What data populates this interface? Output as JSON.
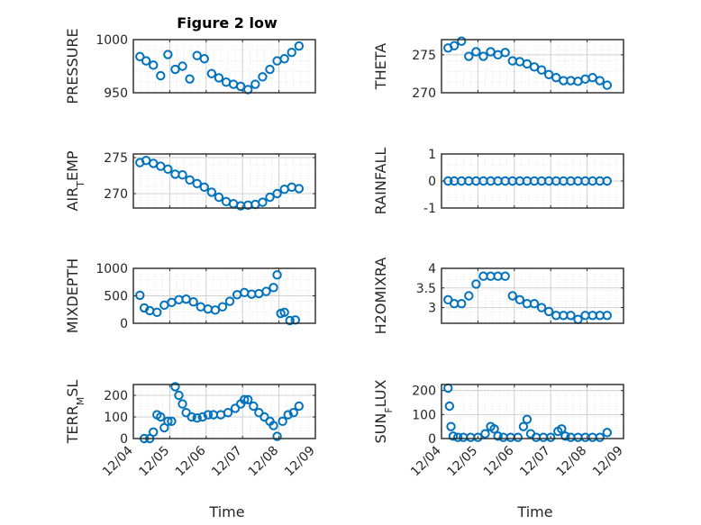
{
  "figure": {
    "title": "Figure 2 low",
    "marker_color": "#0072BD",
    "grid": true,
    "x_ticks": [
      "12/04",
      "12/05",
      "12/06",
      "12/07",
      "12/08",
      "12/09"
    ],
    "x_range": [
      "12/04",
      "12/09"
    ]
  },
  "chart_data": [
    {
      "type": "scatter",
      "ylabel": "PRESSURE",
      "ylim": [
        950,
        1000
      ],
      "yticks": [
        "950",
        "1000"
      ],
      "x_range": [
        "12/04",
        "12/09"
      ],
      "x_ticks": [
        "12/04",
        "12/05",
        "12/06",
        "12/07",
        "12/08",
        "12/09"
      ],
      "x": [
        4.18,
        4.35,
        4.55,
        4.75,
        4.95,
        5.15,
        5.35,
        5.55,
        5.75,
        5.95,
        6.15,
        6.35,
        6.55,
        6.75,
        6.95,
        7.15,
        7.35,
        7.55,
        7.75,
        7.95,
        8.15,
        8.35,
        8.55
      ],
      "y": [
        984,
        980,
        976,
        966,
        986,
        972,
        975,
        963,
        985,
        982,
        968,
        964,
        960,
        958,
        956,
        953,
        958,
        965,
        972,
        980,
        982,
        988,
        994
      ]
    },
    {
      "type": "scatter",
      "ylabel": "THETA",
      "ylim": [
        270,
        277
      ],
      "yticks": [
        "270",
        "275"
      ],
      "x_range": [
        "12/04",
        "12/09"
      ],
      "x_ticks": [
        "12/04",
        "12/05",
        "12/06",
        "12/07",
        "12/08",
        "12/09"
      ],
      "x": [
        4.18,
        4.35,
        4.55,
        4.75,
        4.95,
        5.15,
        5.35,
        5.55,
        5.75,
        5.95,
        6.15,
        6.35,
        6.55,
        6.75,
        6.95,
        7.15,
        7.35,
        7.55,
        7.75,
        7.95,
        8.15,
        8.35,
        8.55
      ],
      "y": [
        275.9,
        276.2,
        276.8,
        274.8,
        275.4,
        274.8,
        275.4,
        275.0,
        275.3,
        274.2,
        274.1,
        273.8,
        273.4,
        273.0,
        272.4,
        272.0,
        271.6,
        271.6,
        271.5,
        271.8,
        272.0,
        271.6,
        271.0
      ]
    },
    {
      "type": "scatter",
      "ylabel": "AIR_TEMP",
      "ylim": [
        268,
        275.5
      ],
      "yticks": [
        "270",
        "275"
      ],
      "x_range": [
        "12/04",
        "12/09"
      ],
      "x_ticks": [
        "12/04",
        "12/05",
        "12/06",
        "12/07",
        "12/08",
        "12/09"
      ],
      "x": [
        4.18,
        4.35,
        4.55,
        4.75,
        4.95,
        5.15,
        5.35,
        5.55,
        5.75,
        5.95,
        6.15,
        6.35,
        6.55,
        6.75,
        6.95,
        7.15,
        7.35,
        7.55,
        7.75,
        7.95,
        8.15,
        8.35,
        8.55
      ],
      "y": [
        274.3,
        274.6,
        274.2,
        273.8,
        273.4,
        272.7,
        272.6,
        271.9,
        271.4,
        270.9,
        270.2,
        269.5,
        268.9,
        268.6,
        268.3,
        268.4,
        268.5,
        268.8,
        269.5,
        270.0,
        270.6,
        270.9,
        270.7
      ]
    },
    {
      "type": "scatter",
      "ylabel": "RAINFALL",
      "ylim": [
        -1,
        1
      ],
      "yticks": [
        "-1",
        "0",
        "1"
      ],
      "x_range": [
        "12/04",
        "12/09"
      ],
      "x_ticks": [
        "12/04",
        "12/05",
        "12/06",
        "12/07",
        "12/08",
        "12/09"
      ],
      "x": [
        4.18,
        4.35,
        4.55,
        4.75,
        4.95,
        5.15,
        5.35,
        5.55,
        5.75,
        5.95,
        6.15,
        6.35,
        6.55,
        6.75,
        6.95,
        7.15,
        7.35,
        7.55,
        7.75,
        7.95,
        8.15,
        8.35,
        8.55
      ],
      "y": [
        0,
        0,
        0,
        0,
        0,
        0,
        0,
        0,
        0,
        0,
        0,
        0,
        0,
        0,
        0,
        0,
        0,
        0,
        0,
        0,
        0,
        0,
        0
      ]
    },
    {
      "type": "scatter",
      "ylabel": "MIXDEPTH",
      "ylim": [
        0,
        1000
      ],
      "yticks": [
        "0",
        "500",
        "1000"
      ],
      "x_range": [
        "12/04",
        "12/09"
      ],
      "x_ticks": [
        "12/04",
        "12/05",
        "12/06",
        "12/07",
        "12/08",
        "12/09"
      ],
      "x": [
        4.18,
        4.3,
        4.45,
        4.65,
        4.85,
        5.05,
        5.25,
        5.45,
        5.65,
        5.85,
        6.05,
        6.25,
        6.45,
        6.65,
        6.85,
        7.05,
        7.25,
        7.45,
        7.65,
        7.85,
        7.95,
        8.05,
        8.15,
        8.3,
        8.45
      ],
      "y": [
        510,
        280,
        230,
        200,
        330,
        380,
        430,
        440,
        390,
        300,
        260,
        240,
        300,
        400,
        520,
        560,
        530,
        540,
        580,
        650,
        880,
        180,
        200,
        50,
        60
      ]
    },
    {
      "type": "scatter",
      "ylabel": "H2OMIXRA",
      "ylim": [
        2.6,
        4.0
      ],
      "yticks": [
        "3",
        "3.5",
        "4"
      ],
      "x_range": [
        "12/04",
        "12/09"
      ],
      "x_ticks": [
        "12/04",
        "12/05",
        "12/06",
        "12/07",
        "12/08",
        "12/09"
      ],
      "x": [
        4.18,
        4.35,
        4.55,
        4.75,
        4.95,
        5.15,
        5.35,
        5.55,
        5.75,
        5.95,
        6.15,
        6.35,
        6.55,
        6.75,
        6.95,
        7.15,
        7.35,
        7.55,
        7.75,
        7.95,
        8.15,
        8.35,
        8.55
      ],
      "y": [
        3.2,
        3.1,
        3.1,
        3.3,
        3.6,
        3.8,
        3.8,
        3.8,
        3.8,
        3.3,
        3.2,
        3.1,
        3.1,
        3.0,
        2.9,
        2.8,
        2.8,
        2.8,
        2.7,
        2.8,
        2.8,
        2.8,
        2.8
      ]
    },
    {
      "type": "scatter",
      "ylabel": "TERR_MSL",
      "ylim": [
        0,
        250
      ],
      "yticks": [
        "0",
        "100",
        "200"
      ],
      "x_range": [
        "12/04",
        "12/09"
      ],
      "x_ticks": [
        "12/04",
        "12/05",
        "12/06",
        "12/07",
        "12/08",
        "12/09"
      ],
      "x": [
        4.3,
        4.45,
        4.55,
        4.65,
        4.75,
        4.85,
        4.95,
        5.05,
        5.15,
        5.25,
        5.35,
        5.45,
        5.6,
        5.75,
        5.9,
        6.05,
        6.2,
        6.4,
        6.6,
        6.8,
        6.95,
        7.05,
        7.15,
        7.3,
        7.45,
        7.6,
        7.75,
        7.85,
        7.95,
        8.1,
        8.25,
        8.4,
        8.55
      ],
      "y": [
        0,
        0,
        30,
        110,
        100,
        50,
        80,
        80,
        240,
        200,
        160,
        120,
        100,
        95,
        100,
        110,
        110,
        110,
        120,
        140,
        160,
        180,
        180,
        150,
        120,
        100,
        80,
        60,
        10,
        80,
        110,
        120,
        150
      ]
    },
    {
      "type": "scatter",
      "ylabel": "SUN_FLUX",
      "ylim": [
        0,
        225
      ],
      "yticks": [
        "0",
        "100",
        "200"
      ],
      "x_range": [
        "12/04",
        "12/09"
      ],
      "x_ticks": [
        "12/04",
        "12/05",
        "12/06",
        "12/07",
        "12/08",
        "12/09"
      ],
      "x": [
        4.18,
        4.22,
        4.26,
        4.32,
        4.45,
        4.6,
        4.8,
        5.0,
        5.2,
        5.35,
        5.45,
        5.55,
        5.7,
        5.9,
        6.1,
        6.25,
        6.35,
        6.45,
        6.6,
        6.8,
        7.0,
        7.2,
        7.3,
        7.4,
        7.55,
        7.75,
        7.95,
        8.15,
        8.35,
        8.55
      ],
      "y": [
        210,
        135,
        50,
        10,
        5,
        5,
        5,
        5,
        20,
        50,
        40,
        10,
        5,
        5,
        5,
        50,
        80,
        20,
        5,
        5,
        5,
        30,
        40,
        10,
        5,
        5,
        5,
        5,
        5,
        25
      ]
    }
  ],
  "axes_labels": {
    "time_left": "Time",
    "time_right": "Time",
    "panel_labels": [
      {
        "base": "PRESSURE",
        "sub": "",
        "rest": ""
      },
      {
        "base": "THETA",
        "sub": "",
        "rest": ""
      },
      {
        "base": "AIR",
        "sub": "T",
        "rest": "EMP"
      },
      {
        "base": "RAINFALL",
        "sub": "",
        "rest": ""
      },
      {
        "base": "MIXDEPTH",
        "sub": "",
        "rest": ""
      },
      {
        "base": "H2OMIXRA",
        "sub": "",
        "rest": ""
      },
      {
        "base": "TERR",
        "sub": "M",
        "rest": "SL"
      },
      {
        "base": "SUN",
        "sub": "F",
        "rest": "LUX"
      }
    ]
  }
}
